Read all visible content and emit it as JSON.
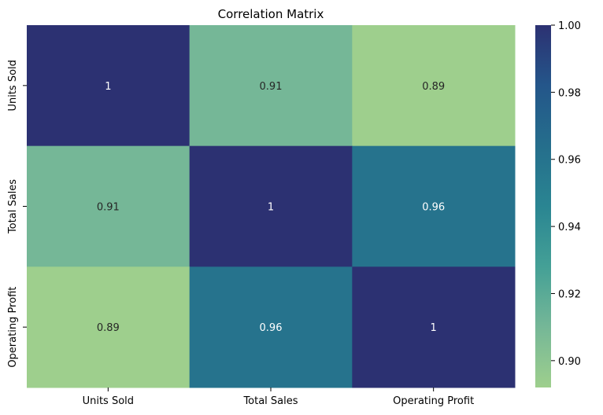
{
  "chart_data": {
    "type": "heatmap",
    "title": "Correlation Matrix",
    "rows": [
      "Units Sold",
      "Total Sales",
      "Operating Profit"
    ],
    "columns": [
      "Units Sold",
      "Total Sales",
      "Operating Profit"
    ],
    "values": [
      [
        1.0,
        0.91,
        0.89
      ],
      [
        0.91,
        1.0,
        0.96
      ],
      [
        0.89,
        0.96,
        1.0
      ]
    ],
    "annotations": [
      [
        "1",
        "0.91",
        "0.89"
      ],
      [
        "0.91",
        "1",
        "0.96"
      ],
      [
        "0.89",
        "0.96",
        "1"
      ]
    ],
    "colorbar": {
      "min": 0.892,
      "max": 1.0,
      "ticks": [
        0.9,
        0.92,
        0.94,
        0.96,
        0.98,
        1.0
      ],
      "tick_labels": [
        "0.90",
        "0.92",
        "0.94",
        "0.96",
        "0.98",
        "1.00"
      ],
      "colors": [
        "#9ecf8d",
        "#75b797",
        "#44a096",
        "#2a8592",
        "#256e8c",
        "#24568a",
        "#2c3172"
      ]
    },
    "grid": false
  }
}
